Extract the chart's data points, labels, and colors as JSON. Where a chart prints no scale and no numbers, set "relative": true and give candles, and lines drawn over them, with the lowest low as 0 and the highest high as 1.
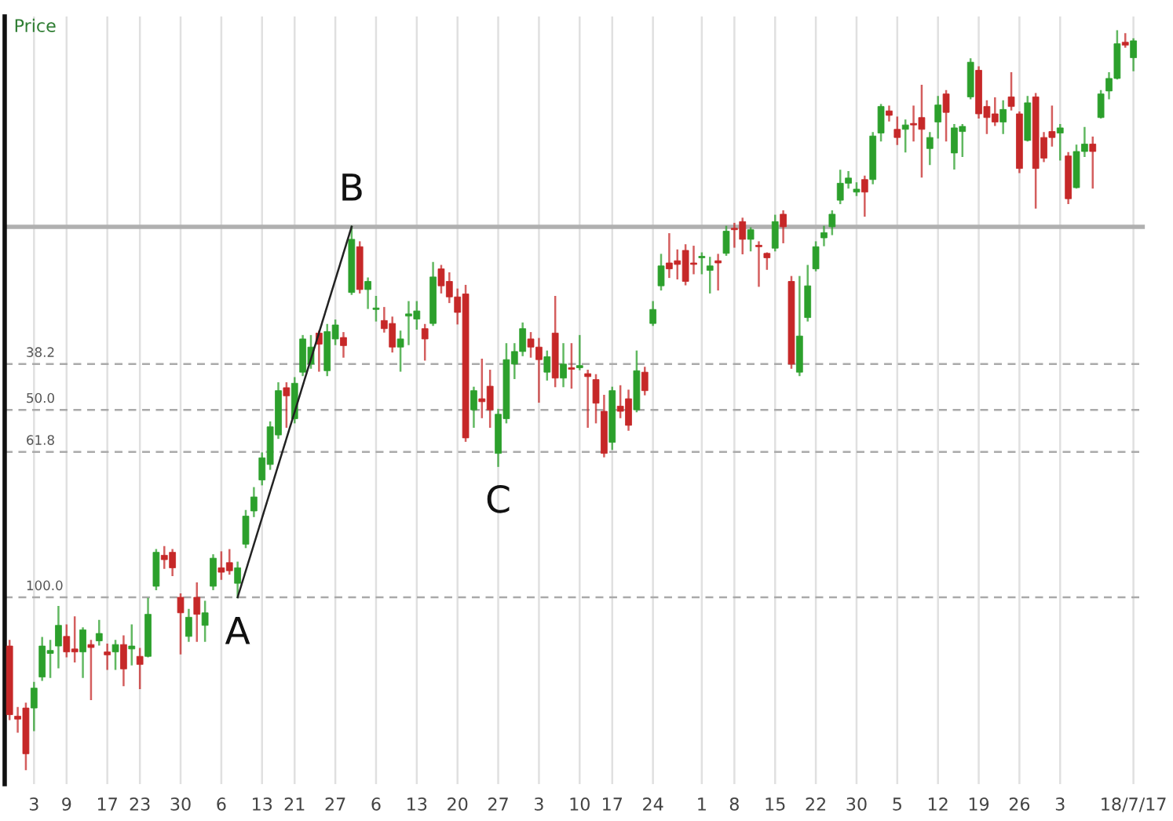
{
  "chart_data": {
    "type": "candlestick",
    "title": "Price",
    "relative": true,
    "tick_labels": "x",
    "grid": "x",
    "legend": false,
    "categories": [
      null,
      null,
      null,
      "3",
      null,
      null,
      null,
      "9",
      null,
      null,
      null,
      null,
      "17",
      null,
      null,
      null,
      "23",
      null,
      null,
      null,
      null,
      "30",
      null,
      null,
      null,
      null,
      "6",
      null,
      null,
      null,
      null,
      "13",
      null,
      null,
      null,
      "21",
      null,
      null,
      null,
      null,
      "27",
      null,
      null,
      null,
      null,
      "6",
      null,
      null,
      null,
      null,
      "13",
      null,
      null,
      null,
      null,
      "20",
      null,
      null,
      null,
      null,
      "27",
      null,
      null,
      null,
      null,
      "3",
      null,
      null,
      null,
      null,
      "10",
      null,
      null,
      null,
      "17",
      null,
      null,
      null,
      null,
      "24",
      null,
      null,
      null,
      null,
      null,
      "1",
      null,
      null,
      null,
      "8",
      null,
      null,
      null,
      null,
      "15",
      null,
      null,
      null,
      null,
      "22",
      null,
      null,
      null,
      null,
      "30",
      null,
      null,
      null,
      null,
      "5",
      null,
      null,
      null,
      null,
      "12",
      null,
      null,
      null,
      null,
      "19",
      null,
      null,
      null,
      null,
      "26",
      null,
      null,
      null,
      null,
      "3",
      null,
      null,
      null,
      null,
      null,
      null,
      null,
      null,
      "18/7/17"
    ],
    "ohlc": [
      [
        0.167,
        0.174,
        0.068,
        0.074
      ],
      [
        0.072,
        0.083,
        0.051,
        0.068
      ],
      [
        0.083,
        0.089,
        0,
        0.021
      ],
      [
        0.083,
        0.117,
        0.053,
        0.11
      ],
      [
        0.125,
        0.178,
        0.121,
        0.167
      ],
      [
        0.157,
        0.174,
        0.125,
        0.161
      ],
      [
        0.167,
        0.22,
        0.138,
        0.195
      ],
      [
        0.18,
        0.195,
        0.153,
        0.159
      ],
      [
        0.163,
        0.206,
        0.146,
        0.159
      ],
      [
        0.159,
        0.191,
        0.125,
        0.189
      ],
      [
        0.169,
        0.174,
        0.095,
        0.165
      ],
      [
        0.174,
        0.201,
        0.169,
        0.184
      ],
      [
        0.159,
        0.169,
        0.136,
        0.155
      ],
      [
        0.159,
        0.174,
        0.136,
        0.169
      ],
      [
        0.169,
        0.18,
        0.114,
        0.136
      ],
      [
        0.163,
        0.195,
        0.142,
        0.167
      ],
      [
        0.153,
        0.163,
        0.11,
        0.142
      ],
      [
        0.153,
        0.231,
        0.153,
        0.21
      ],
      [
        0.248,
        0.297,
        0.244,
        0.294
      ],
      [
        0.29,
        0.301,
        0.273,
        0.284
      ],
      [
        0.294,
        0.297,
        0.263,
        0.273
      ],
      [
        0.233,
        0.237,
        0.157,
        0.212
      ],
      [
        0.18,
        0.216,
        0.174,
        0.206
      ],
      [
        0.233,
        0.252,
        0.174,
        0.21
      ],
      [
        0.195,
        0.227,
        0.174,
        0.212
      ],
      [
        0.248,
        0.29,
        0.244,
        0.286
      ],
      [
        0.273,
        0.294,
        0.258,
        0.267
      ],
      [
        0.28,
        0.297,
        0.265,
        0.269
      ],
      [
        0.252,
        0.28,
        0.233,
        0.273
      ],
      [
        0.305,
        0.35,
        0.301,
        0.343
      ],
      [
        0.35,
        0.381,
        0.343,
        0.369
      ],
      [
        0.392,
        0.428,
        0.386,
        0.422
      ],
      [
        0.413,
        0.47,
        0.407,
        0.464
      ],
      [
        0.453,
        0.523,
        0.449,
        0.513
      ],
      [
        0.517,
        0.523,
        0.464,
        0.506
      ],
      [
        0.475,
        0.53,
        0.47,
        0.523
      ],
      [
        0.538,
        0.587,
        0.534,
        0.583
      ],
      [
        0.549,
        0.587,
        0.544,
        0.572
      ],
      [
        0.591,
        0.593,
        0.54,
        0.576
      ],
      [
        0.54,
        0.602,
        0.534,
        0.593
      ],
      [
        0.583,
        0.608,
        0.576,
        0.602
      ],
      [
        0.585,
        0.591,
        0.559,
        0.574
      ],
      [
        0.646,
        0.735,
        0.644,
        0.718
      ],
      [
        0.708,
        0.714,
        0.646,
        0.65
      ],
      [
        0.65,
        0.665,
        0.625,
        0.661
      ],
      [
        0.623,
        0.64,
        0.608,
        0.625
      ],
      [
        0.608,
        0.625,
        0.593,
        0.597
      ],
      [
        0.604,
        0.612,
        0.566,
        0.572
      ],
      [
        0.572,
        0.593,
        0.54,
        0.583
      ],
      [
        0.614,
        0.633,
        0.576,
        0.617
      ],
      [
        0.61,
        0.633,
        0.597,
        0.621
      ],
      [
        0.597,
        0.602,
        0.555,
        0.583
      ],
      [
        0.604,
        0.686,
        0.602,
        0.667
      ],
      [
        0.678,
        0.682,
        0.646,
        0.655
      ],
      [
        0.661,
        0.672,
        0.633,
        0.64
      ],
      [
        0.64,
        0.65,
        0.604,
        0.619
      ],
      [
        0.644,
        0.655,
        0.445,
        0.449
      ],
      [
        0.487,
        0.517,
        0.464,
        0.513
      ],
      [
        0.502,
        0.555,
        0.477,
        0.498
      ],
      [
        0.519,
        0.54,
        0.464,
        0.487
      ],
      [
        0.428,
        0.487,
        0.411,
        0.481
      ],
      [
        0.475,
        0.576,
        0.47,
        0.555
      ],
      [
        0.549,
        0.576,
        0.53,
        0.566
      ],
      [
        0.566,
        0.604,
        0.561,
        0.597
      ],
      [
        0.583,
        0.591,
        0.559,
        0.572
      ],
      [
        0.572,
        0.583,
        0.498,
        0.555
      ],
      [
        0.538,
        0.566,
        0.528,
        0.559
      ],
      [
        0.591,
        0.64,
        0.519,
        0.53
      ],
      [
        0.53,
        0.576,
        0.519,
        0.549
      ],
      [
        0.544,
        0.576,
        0.517,
        0.542
      ],
      [
        0.544,
        0.587,
        0.542,
        0.547
      ],
      [
        0.536,
        0.54,
        0.464,
        0.532
      ],
      [
        0.528,
        0.534,
        0.47,
        0.496
      ],
      [
        0.485,
        0.506,
        0.424,
        0.428
      ],
      [
        0.443,
        0.517,
        0.434,
        0.513
      ],
      [
        0.492,
        0.519,
        0.477,
        0.485
      ],
      [
        0.502,
        0.513,
        0.46,
        0.466
      ],
      [
        0.487,
        0.566,
        0.485,
        0.54
      ],
      [
        0.538,
        0.544,
        0.508,
        0.513
      ],
      [
        0.604,
        0.633,
        0.602,
        0.623
      ],
      [
        0.655,
        0.697,
        0.65,
        0.682
      ],
      [
        0.686,
        0.725,
        0.667,
        0.678
      ],
      [
        0.689,
        0.703,
        0.665,
        0.684
      ],
      [
        0.703,
        0.71,
        0.657,
        0.661
      ],
      [
        0.686,
        0.708,
        0.672,
        0.684
      ],
      [
        0.693,
        0.699,
        0.672,
        0.695
      ],
      [
        0.676,
        0.693,
        0.646,
        0.682
      ],
      [
        0.689,
        0.697,
        0.65,
        0.686
      ],
      [
        0.699,
        0.735,
        0.697,
        0.729
      ],
      [
        0.733,
        0.739,
        0.708,
        0.731
      ],
      [
        0.742,
        0.746,
        0.699,
        0.718
      ],
      [
        0.718,
        0.733,
        0.703,
        0.731
      ],
      [
        0.71,
        0.714,
        0.655,
        0.708
      ],
      [
        0.699,
        0.699,
        0.678,
        0.693
      ],
      [
        0.706,
        0.75,
        0.703,
        0.742
      ],
      [
        0.752,
        0.756,
        0.714,
        0.735
      ],
      [
        0.661,
        0.667,
        0.544,
        0.549
      ],
      [
        0.538,
        0.667,
        0.534,
        0.587
      ],
      [
        0.612,
        0.682,
        0.608,
        0.655
      ],
      [
        0.678,
        0.714,
        0.676,
        0.708
      ],
      [
        0.72,
        0.735,
        0.71,
        0.727
      ],
      [
        0.735,
        0.756,
        0.725,
        0.752
      ],
      [
        0.771,
        0.811,
        0.767,
        0.794
      ],
      [
        0.794,
        0.809,
        0.788,
        0.801
      ],
      [
        0.782,
        0.794,
        0.778,
        0.786
      ],
      [
        0.799,
        0.803,
        0.75,
        0.782
      ],
      [
        0.799,
        0.862,
        0.794,
        0.858
      ],
      [
        0.862,
        0.9,
        0.852,
        0.898
      ],
      [
        0.892,
        0.898,
        0.879,
        0.886
      ],
      [
        0.867,
        0.883,
        0.847,
        0.856
      ],
      [
        0.867,
        0.879,
        0.837,
        0.873
      ],
      [
        0.875,
        0.898,
        0.852,
        0.873
      ],
      [
        0.883,
        0.926,
        0.803,
        0.867
      ],
      [
        0.841,
        0.862,
        0.82,
        0.856
      ],
      [
        0.877,
        0.911,
        0.856,
        0.9
      ],
      [
        0.915,
        0.919,
        0.852,
        0.89
      ],
      [
        0.835,
        0.873,
        0.814,
        0.869
      ],
      [
        0.864,
        0.873,
        0.831,
        0.871
      ],
      [
        0.911,
        0.962,
        0.909,
        0.958
      ],
      [
        0.947,
        0.951,
        0.883,
        0.888
      ],
      [
        0.898,
        0.905,
        0.862,
        0.883
      ],
      [
        0.888,
        0.909,
        0.873,
        0.877
      ],
      [
        0.877,
        0.905,
        0.862,
        0.894
      ],
      [
        0.911,
        0.943,
        0.894,
        0.898
      ],
      [
        0.888,
        0.89,
        0.809,
        0.814
      ],
      [
        0.852,
        0.911,
        0.852,
        0.903
      ],
      [
        0.911,
        0.915,
        0.761,
        0.814
      ],
      [
        0.856,
        0.862,
        0.824,
        0.828
      ],
      [
        0.864,
        0.898,
        0.845,
        0.856
      ],
      [
        0.862,
        0.873,
        0.826,
        0.869
      ],
      [
        0.831,
        0.835,
        0.767,
        0.773
      ],
      [
        0.788,
        0.845,
        0.788,
        0.837
      ],
      [
        0.837,
        0.869,
        0.831,
        0.847
      ],
      [
        0.847,
        0.856,
        0.788,
        0.837
      ],
      [
        0.883,
        0.919,
        0.883,
        0.915
      ],
      [
        0.919,
        0.943,
        0.909,
        0.936
      ],
      [
        0.936,
        1,
        0.936,
        0.983
      ],
      [
        0.985,
        0.996,
        0.979,
        0.981
      ],
      [
        0.964,
        0.989,
        0.947,
        0.987
      ]
    ],
    "ref_lines": [
      {
        "axis": "y",
        "value": 0.735,
        "label": null,
        "color": "#b0b0b0",
        "line_style": "solid"
      },
      {
        "axis": "y",
        "value": 0.549,
        "color": "#aaaaaa",
        "line_style": "dashed"
      },
      {
        "axis": "y",
        "value": 0.487,
        "color": "#aaaaaa",
        "line_style": "dashed"
      },
      {
        "axis": "y",
        "value": 0.43,
        "color": "#aaaaaa",
        "line_style": "dashed"
      },
      {
        "axis": "y",
        "value": 0.233,
        "color": "#aaaaaa",
        "line_style": "dashed"
      }
    ],
    "annotations": [
      {
        "text": "38.2",
        "y": 0.549
      },
      {
        "text": "50.0",
        "y": 0.487
      },
      {
        "text": "61.8",
        "y": 0.43
      },
      {
        "text": "100.0",
        "y": 0.233
      },
      {
        "text": "A",
        "y": 0.233
      },
      {
        "text": "B",
        "y": 0.735
      },
      {
        "text": "C",
        "y": 0.411
      }
    ]
  }
}
